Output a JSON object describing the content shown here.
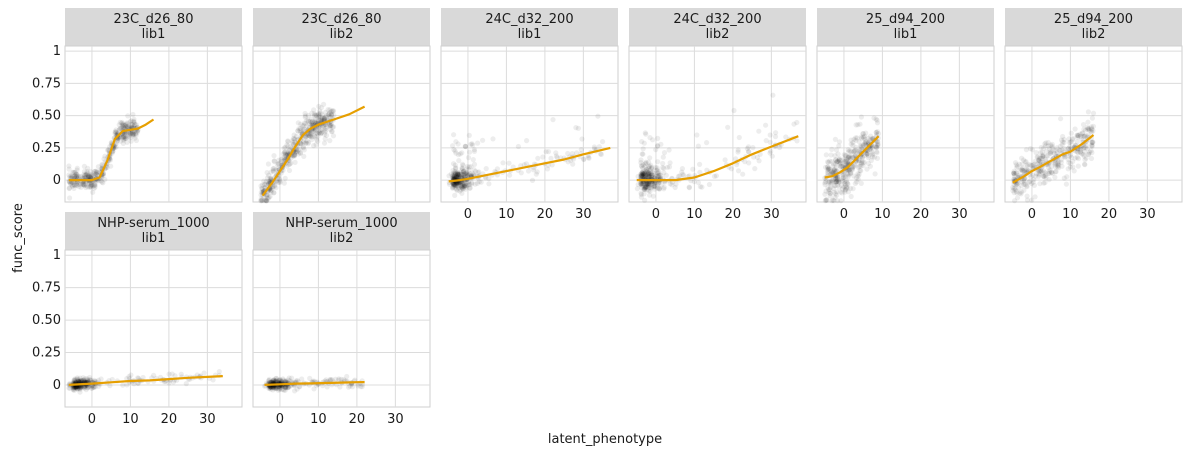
{
  "chart_data": {
    "type": "scatter",
    "xlabel": "latent_phenotype",
    "ylabel": "func_score",
    "xlim": [
      -7,
      39
    ],
    "ylim": [
      -0.17,
      1.04
    ],
    "x_ticks": [
      0,
      10,
      20,
      30
    ],
    "x_tick_labels": [
      "0",
      "10",
      "20",
      "30"
    ],
    "y_ticks": [
      0,
      0.25,
      0.5,
      0.75,
      1
    ],
    "y_tick_labels": [
      "0",
      "0.25",
      "0.50",
      "0.75",
      "1"
    ],
    "grid": true,
    "point_color": "#000000",
    "line_color": "#e69f00",
    "strip_color": "#d9d9d9",
    "grid_color": "#dcdcdc",
    "panels": [
      {
        "strip": [
          "23C_d26_80",
          "lib1"
        ],
        "core": {
          "xmin": -6,
          "xmax": 12,
          "shape": "sigmoid",
          "lo": 0.0,
          "hi": 0.45,
          "mid": 5,
          "scale": 1.4,
          "noise": 0.04,
          "n": 380
        },
        "fit": [
          [
            -6,
            0.0
          ],
          [
            -2,
            0.0
          ],
          [
            0,
            0.0
          ],
          [
            2,
            0.02
          ],
          [
            4,
            0.15
          ],
          [
            6,
            0.32
          ],
          [
            8,
            0.38
          ],
          [
            10,
            0.39
          ],
          [
            12,
            0.4
          ],
          [
            14,
            0.43
          ],
          [
            16,
            0.47
          ]
        ]
      },
      {
        "strip": [
          "23C_d26_80",
          "lib2"
        ],
        "core": {
          "xmin": -5,
          "xmax": 14,
          "shape": "linear-sat",
          "lo": -0.05,
          "hi": 0.45,
          "mid": 5,
          "scale": 3.5,
          "noise": 0.06,
          "n": 450
        },
        "fit": [
          [
            -4.5,
            -0.12
          ],
          [
            -2,
            -0.02
          ],
          [
            0,
            0.07
          ],
          [
            2,
            0.16
          ],
          [
            4,
            0.26
          ],
          [
            6,
            0.35
          ],
          [
            8,
            0.4
          ],
          [
            10,
            0.43
          ],
          [
            14,
            0.47
          ],
          [
            18,
            0.51
          ],
          [
            22,
            0.57
          ]
        ]
      },
      {
        "strip": [
          "24C_d32_200",
          "lib1"
        ],
        "core": {
          "xmin": -5,
          "xmax": 35,
          "shape": "spread",
          "lo": 0.0,
          "hi": 0.25,
          "mid": 10,
          "scale": 10,
          "noise": 0.04,
          "n": 360
        },
        "fit": [
          [
            -5,
            -0.01
          ],
          [
            -2,
            0.0
          ],
          [
            0,
            0.01
          ],
          [
            5,
            0.04
          ],
          [
            10,
            0.07
          ],
          [
            15,
            0.1
          ],
          [
            20,
            0.13
          ],
          [
            25,
            0.16
          ],
          [
            30,
            0.2
          ],
          [
            37,
            0.25
          ]
        ]
      },
      {
        "strip": [
          "24C_d32_200",
          "lib2"
        ],
        "core": {
          "xmin": -5,
          "xmax": 37,
          "shape": "spread",
          "lo": 0.0,
          "hi": 0.34,
          "mid": 15,
          "scale": 10,
          "noise": 0.05,
          "n": 360
        },
        "fit": [
          [
            -5,
            0.0
          ],
          [
            0,
            0.0
          ],
          [
            5,
            0.0
          ],
          [
            10,
            0.02
          ],
          [
            15,
            0.07
          ],
          [
            20,
            0.13
          ],
          [
            25,
            0.2
          ],
          [
            30,
            0.26
          ],
          [
            37,
            0.34
          ]
        ]
      },
      {
        "strip": [
          "25_d94_200",
          "lib1"
        ],
        "core": {
          "xmin": -5,
          "xmax": 9,
          "shape": "blob",
          "lo": 0.02,
          "hi": 0.35,
          "mid": 2,
          "scale": 4,
          "noise": 0.1,
          "n": 380
        },
        "fit": [
          [
            -5,
            0.02
          ],
          [
            -3,
            0.03
          ],
          [
            -1,
            0.06
          ],
          [
            1,
            0.1
          ],
          [
            3,
            0.16
          ],
          [
            5,
            0.22
          ],
          [
            7,
            0.28
          ],
          [
            9,
            0.34
          ]
        ]
      },
      {
        "strip": [
          "25_d94_200",
          "lib2"
        ],
        "core": {
          "xmin": -5,
          "xmax": 16,
          "shape": "blob",
          "lo": -0.02,
          "hi": 0.35,
          "mid": 2,
          "scale": 5,
          "noise": 0.08,
          "n": 380
        },
        "fit": [
          [
            -5,
            -0.02
          ],
          [
            -2,
            0.03
          ],
          [
            0,
            0.07
          ],
          [
            2,
            0.1
          ],
          [
            5,
            0.15
          ],
          [
            8,
            0.2
          ],
          [
            10,
            0.22
          ],
          [
            13,
            0.28
          ],
          [
            16,
            0.35
          ]
        ]
      },
      {
        "strip": [
          "NHP-serum_1000",
          "lib1"
        ],
        "core": {
          "xmin": -6,
          "xmax": 34,
          "shape": "flat",
          "lo": 0.0,
          "hi": 0.06,
          "mid": 5,
          "scale": 10,
          "noise": 0.02,
          "n": 300
        },
        "fit": [
          [
            -6,
            0.0
          ],
          [
            0,
            0.01
          ],
          [
            5,
            0.02
          ],
          [
            10,
            0.03
          ],
          [
            15,
            0.035
          ],
          [
            20,
            0.045
          ],
          [
            25,
            0.055
          ],
          [
            30,
            0.062
          ],
          [
            34,
            0.068
          ]
        ]
      },
      {
        "strip": [
          "NHP-serum_1000",
          "lib2"
        ],
        "core": {
          "xmin": -4,
          "xmax": 22,
          "shape": "flat",
          "lo": 0.0,
          "hi": 0.03,
          "mid": 3,
          "scale": 6,
          "noise": 0.02,
          "n": 300
        },
        "fit": [
          [
            -4,
            0.0
          ],
          [
            0,
            0.005
          ],
          [
            4,
            0.01
          ],
          [
            8,
            0.012
          ],
          [
            12,
            0.015
          ],
          [
            16,
            0.018
          ],
          [
            20,
            0.021
          ],
          [
            22,
            0.022
          ]
        ]
      }
    ]
  }
}
